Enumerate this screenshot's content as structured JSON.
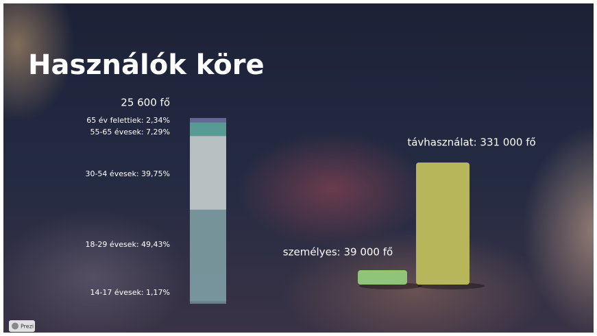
{
  "title": "Használók köre",
  "badge": "Prezi",
  "chart_data": [
    {
      "type": "stacked-bar",
      "title": "25 600 fő",
      "ylim": [
        0,
        100
      ],
      "series": [
        {
          "name": "65 év felettiek: 2,34%",
          "color": "#6b6f9c",
          "values": [
            2.34
          ]
        },
        {
          "name": "55-65 évesek: 7,29%",
          "color": "#5ea79f",
          "values": [
            7.29
          ]
        },
        {
          "name": "30-54 évesek: 39,75%",
          "color": "#c8d1cf",
          "values": [
            39.75
          ]
        },
        {
          "name": "18-29 évesek: 49,43%",
          "color": "#7e9ea4",
          "values": [
            49.43
          ]
        },
        {
          "name": "14-17 évesek: 1,17%",
          "color": "#6a8a90",
          "values": [
            1.17
          ]
        }
      ]
    },
    {
      "type": "bar",
      "ylim": [
        0,
        331000
      ],
      "values": [
        39000,
        331000
      ],
      "value_labels": [
        "személyes: 39 000 fő",
        "távhasználat: 331 000 fő"
      ],
      "colors": [
        "#8fc47a",
        "#b7b65a"
      ]
    }
  ]
}
